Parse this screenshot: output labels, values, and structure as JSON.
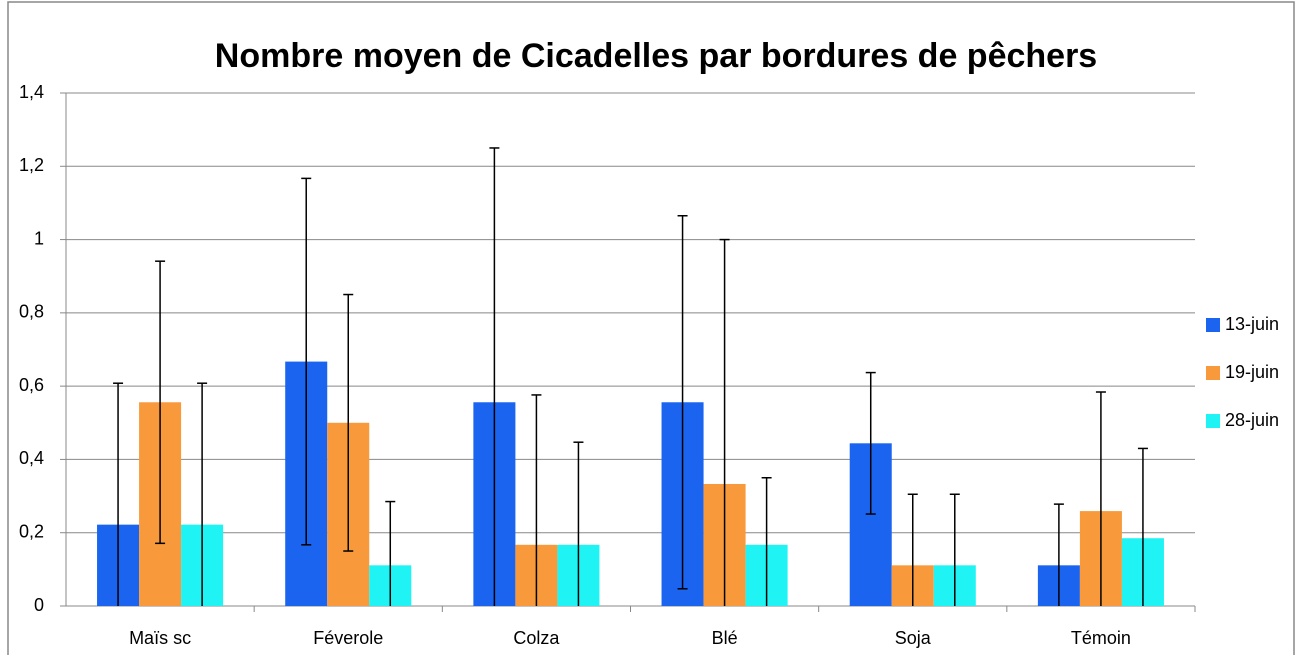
{
  "chart_data": {
    "type": "bar",
    "title": "Nombre moyen de Cicadelles par bordures de pêchers",
    "categories": [
      "Maïs sc",
      "Féverole",
      "Colza",
      "Blé",
      "Soja",
      "Témoin"
    ],
    "series": [
      {
        "name": "13-juin",
        "color": "#1b64f0",
        "values": [
          0.222,
          0.667,
          0.556,
          0.556,
          0.444,
          0.111
        ],
        "errors": [
          0.386,
          0.5,
          0.694,
          0.509,
          0.193,
          0.167
        ]
      },
      {
        "name": "19-juin",
        "color": "#f89a3c",
        "values": [
          0.556,
          0.5,
          0.167,
          0.333,
          0.111,
          0.259
        ],
        "errors": [
          0.385,
          0.35,
          0.409,
          0.667,
          0.194,
          0.325
        ]
      },
      {
        "name": "28-juin",
        "color": "#1ff3f3",
        "values": [
          0.222,
          0.111,
          0.167,
          0.167,
          0.111,
          0.185
        ],
        "errors": [
          0.386,
          0.174,
          0.28,
          0.183,
          0.194,
          0.245
        ]
      }
    ],
    "ylim": [
      0,
      1.4
    ],
    "yticks": [
      0,
      {
        "value": 0.2,
        "label": "0,2"
      },
      {
        "value": 0.4,
        "label": "0,4"
      },
      {
        "value": 0.6,
        "label": "0,6"
      },
      {
        "value": 0.8,
        "label": "0,8"
      },
      1,
      {
        "value": 1.2,
        "label": "1,2"
      },
      {
        "value": 1.4,
        "label": "1,4"
      }
    ],
    "grid": true,
    "legend": "right"
  }
}
